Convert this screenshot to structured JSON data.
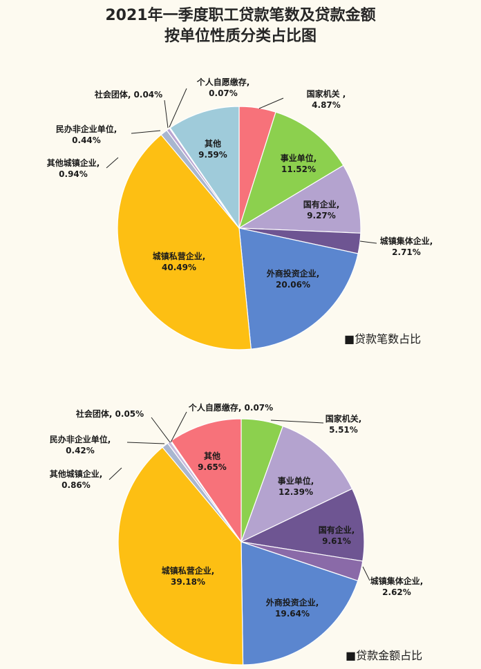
{
  "title": {
    "line1": "2021年一季度职工贷款笔数及贷款金额",
    "line2": "按单位性质分类占比图"
  },
  "chart_data": [
    {
      "type": "pie",
      "caption": "■贷款笔数占比",
      "slices": [
        {
          "name": "国家机关",
          "value": 4.87,
          "label": "4.87%",
          "color": "#f7727a"
        },
        {
          "name": "事业单位",
          "value": 11.52,
          "label": "11.52%",
          "color": "#8cd04e"
        },
        {
          "name": "国有企业",
          "value": 9.27,
          "label": "9.27%",
          "color": "#b4a3cf"
        },
        {
          "name": "城镇集体企业",
          "value": 2.71,
          "label": "2.71%",
          "color": "#6e5592"
        },
        {
          "name": "外商投资企业",
          "value": 20.06,
          "label": "20.06%",
          "color": "#5b86cf"
        },
        {
          "name": "城镇私营企业",
          "value": 40.49,
          "label": "40.49%",
          "color": "#fdbf13"
        },
        {
          "name": "其他城镇企业",
          "value": 0.94,
          "label": "0.94%",
          "color": "#a9b6cf"
        },
        {
          "name": "民办非企业单位",
          "value": 0.44,
          "label": "0.44%",
          "color": "#b9a5d1"
        },
        {
          "name": "社会团体",
          "value": 0.04,
          "label": "0.04%",
          "color": "#d6c8e2"
        },
        {
          "name": "个人自愿缴存",
          "value": 0.07,
          "label": "0.07%",
          "color": "#f0a5a5"
        },
        {
          "name": "其他",
          "value": 9.59,
          "label": "9.59%",
          "color": "#9fcbda"
        }
      ]
    },
    {
      "type": "pie",
      "caption": "■贷款金额占比",
      "slices": [
        {
          "name": "国家机关",
          "value": 5.51,
          "label": "5.51%",
          "color": "#8cd04e"
        },
        {
          "name": "事业单位",
          "value": 12.39,
          "label": "12.39%",
          "color": "#b4a3cf"
        },
        {
          "name": "国有企业",
          "value": 9.61,
          "label": "9.61%",
          "color": "#6e5592"
        },
        {
          "name": "城镇集体企业",
          "value": 2.62,
          "label": "2.62%",
          "color": "#8a6aa8"
        },
        {
          "name": "外商投资企业",
          "value": 19.64,
          "label": "19.64%",
          "color": "#5b86cf"
        },
        {
          "name": "城镇私营企业",
          "value": 39.18,
          "label": "39.18%",
          "color": "#fdbf13"
        },
        {
          "name": "其他城镇企业",
          "value": 0.86,
          "label": "0.86%",
          "color": "#a9b6cf"
        },
        {
          "name": "民办非企业单位",
          "value": 0.42,
          "label": "0.42%",
          "color": "#c7b9dc"
        },
        {
          "name": "社会团体",
          "value": 0.05,
          "label": "0.05%",
          "color": "#d6c8e2"
        },
        {
          "name": "个人自愿缴存",
          "value": 0.07,
          "label": "0.07%",
          "color": "#f0a5a5"
        },
        {
          "name": "其他",
          "value": 9.65,
          "label": "9.65%",
          "color": "#f7727a"
        }
      ]
    }
  ]
}
